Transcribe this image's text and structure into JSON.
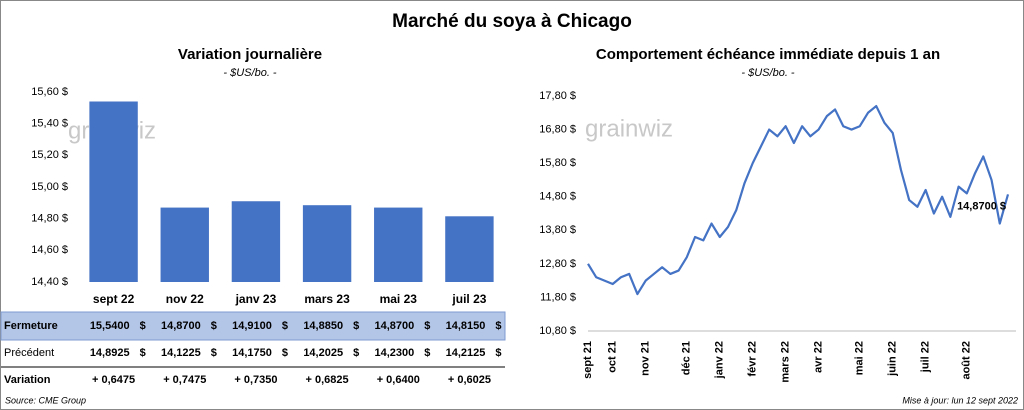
{
  "header": {
    "title": "Marché du soya à Chicago",
    "source": "Source: CME Group",
    "updated": "Mise à jour: lun 12 sept 2022",
    "watermark": "grainwiz"
  },
  "chart_data": [
    {
      "type": "bar",
      "title": "Variation journalière",
      "subtitle": "- $US/bo. -",
      "categories": [
        "sept 22",
        "nov 22",
        "janv 23",
        "mars 23",
        "mai 23",
        "juil 23"
      ],
      "values": [
        15.54,
        14.87,
        14.91,
        14.885,
        14.87,
        14.815
      ],
      "color": "#4472c4",
      "ylim": [
        14.4,
        15.6
      ],
      "yticks": [
        {
          "value": 14.4,
          "label": "14,40 $"
        },
        {
          "value": 14.6,
          "label": "14,60 $"
        },
        {
          "value": 14.8,
          "label": "14,80 $"
        },
        {
          "value": 15.0,
          "label": "15,00 $"
        },
        {
          "value": 15.2,
          "label": "15,20 $"
        },
        {
          "value": 15.4,
          "label": "15,40 $"
        },
        {
          "value": 15.6,
          "label": "15,60 $"
        }
      ],
      "grid": false
    },
    {
      "type": "line",
      "title": "Comportement échéance immédiate depuis 1 an",
      "subtitle": "- $US/bo. -",
      "categories": [
        "sept 21",
        null,
        null,
        "oct 21",
        null,
        null,
        null,
        "nov 21",
        null,
        null,
        null,
        null,
        "déc 21",
        null,
        null,
        null,
        "janv 22",
        null,
        null,
        null,
        "févr 22",
        null,
        null,
        null,
        "mars 22",
        null,
        null,
        null,
        "avr 22",
        null,
        null,
        null,
        null,
        "mai 22",
        null,
        null,
        null,
        "juin 22",
        null,
        null,
        null,
        "juil 22",
        null,
        null,
        null,
        null,
        "août 22",
        null,
        null,
        null,
        null,
        null
      ],
      "values": [
        12.8,
        12.4,
        12.3,
        12.2,
        12.4,
        12.5,
        11.9,
        12.3,
        12.5,
        12.7,
        12.5,
        12.6,
        13.0,
        13.6,
        13.5,
        14.0,
        13.6,
        13.9,
        14.4,
        15.2,
        15.8,
        16.3,
        16.8,
        16.6,
        16.9,
        16.4,
        16.9,
        16.6,
        16.8,
        17.2,
        17.4,
        16.9,
        16.8,
        16.9,
        17.3,
        17.5,
        17.0,
        16.7,
        15.6,
        14.7,
        14.5,
        15.0,
        14.3,
        14.8,
        14.2,
        15.1,
        14.9,
        15.5,
        16.0,
        15.3,
        14.0,
        14.87
      ],
      "color": "#4472c4",
      "annotation": "14,8700 $",
      "ylim": [
        10.8,
        17.8
      ],
      "yticks": [
        {
          "value": 10.8,
          "label": "10,80 $"
        },
        {
          "value": 11.8,
          "label": "11,80 $"
        },
        {
          "value": 12.8,
          "label": "12,80 $"
        },
        {
          "value": 13.8,
          "label": "13,80 $"
        },
        {
          "value": 14.8,
          "label": "14,80 $"
        },
        {
          "value": 15.8,
          "label": "15,80 $"
        },
        {
          "value": 16.8,
          "label": "16,80 $"
        },
        {
          "value": 17.8,
          "label": "17,80 $"
        }
      ],
      "grid": false
    }
  ],
  "table": {
    "unit": "$",
    "rows": [
      {
        "label": "Fermeture",
        "cells": [
          "15,5400",
          "14,8700",
          "14,9100",
          "14,8850",
          "14,8700",
          "14,8150"
        ]
      },
      {
        "label": "Précédent",
        "cells": [
          "14,8925",
          "14,1225",
          "14,1750",
          "14,2025",
          "14,2300",
          "14,2125"
        ]
      },
      {
        "label": "Variation",
        "cells": [
          "+ 0,6475",
          "+ 0,7475",
          "+ 0,7350",
          "+ 0,6825",
          "+ 0,6400",
          "+ 0,6025"
        ]
      }
    ]
  }
}
